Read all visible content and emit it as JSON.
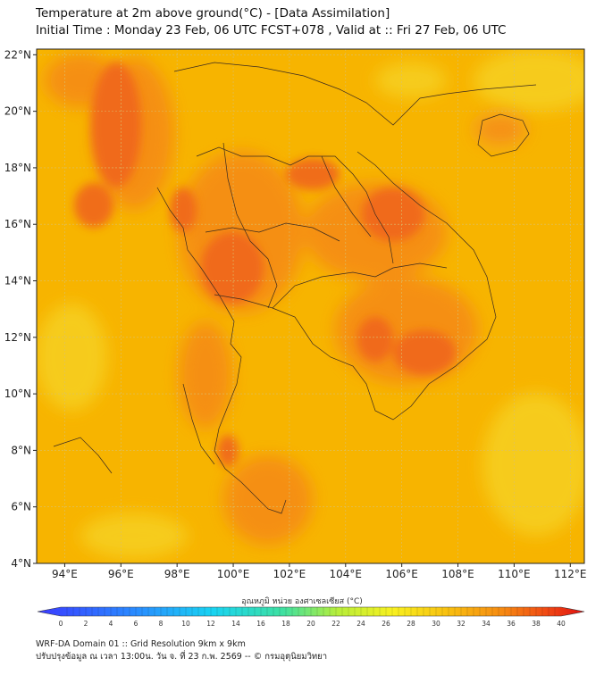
{
  "title": {
    "line1": "Temperature at 2m above ground(°C) - [Data Assimilation]",
    "line2": "Initial Time : Monday 23 Feb, 06 UTC FCST+078 , Valid at :: Fri 27 Feb, 06 UTC"
  },
  "map": {
    "lon_range": [
      93,
      112.5
    ],
    "lat_range": [
      4,
      22.2
    ],
    "lon_ticks": [
      {
        "value": 94,
        "label": "94°E"
      },
      {
        "value": 96,
        "label": "96°E"
      },
      {
        "value": 98,
        "label": "98°E"
      },
      {
        "value": 100,
        "label": "100°E"
      },
      {
        "value": 102,
        "label": "102°E"
      },
      {
        "value": 104,
        "label": "104°E"
      },
      {
        "value": 106,
        "label": "106°E"
      },
      {
        "value": 108,
        "label": "108°E"
      },
      {
        "value": 110,
        "label": "110°E"
      },
      {
        "value": 112,
        "label": "112°E"
      }
    ],
    "lat_ticks": [
      {
        "value": 4,
        "label": "4°N"
      },
      {
        "value": 6,
        "label": "6°N"
      },
      {
        "value": 8,
        "label": "8°N"
      },
      {
        "value": 10,
        "label": "10°N"
      },
      {
        "value": 12,
        "label": "12°N"
      },
      {
        "value": 14,
        "label": "14°N"
      },
      {
        "value": 16,
        "label": "16°N"
      },
      {
        "value": 18,
        "label": "18°N"
      },
      {
        "value": 20,
        "label": "20°N"
      },
      {
        "value": 22,
        "label": "22°N"
      }
    ],
    "grid": true,
    "background_color": "#f7b400",
    "hot_color": "#f0661a",
    "warm_color": "#f58c12",
    "cool_color": "#f5d21e",
    "border_color": "#3a2a20"
  },
  "colorbar": {
    "label": "อุณหภูมิ หน่วย องศาเซลเซียส (°C)",
    "min": 0,
    "max": 40,
    "ticks": [
      "0",
      "2",
      "4",
      "6",
      "8",
      "10",
      "12",
      "14",
      "16",
      "18",
      "20",
      "22",
      "24",
      "26",
      "28",
      "30",
      "32",
      "34",
      "36",
      "38",
      "40"
    ]
  },
  "footer": {
    "line1": "WRF-DA Domain 01 :: Grid Resolution 9km x 9km",
    "line2": "ปรับปรุงข้อมูล ณ เวลา 13:00น. วัน จ. ที่ 23 ก.พ. 2569 -- © กรมอุตุนิยมวิทยา"
  }
}
